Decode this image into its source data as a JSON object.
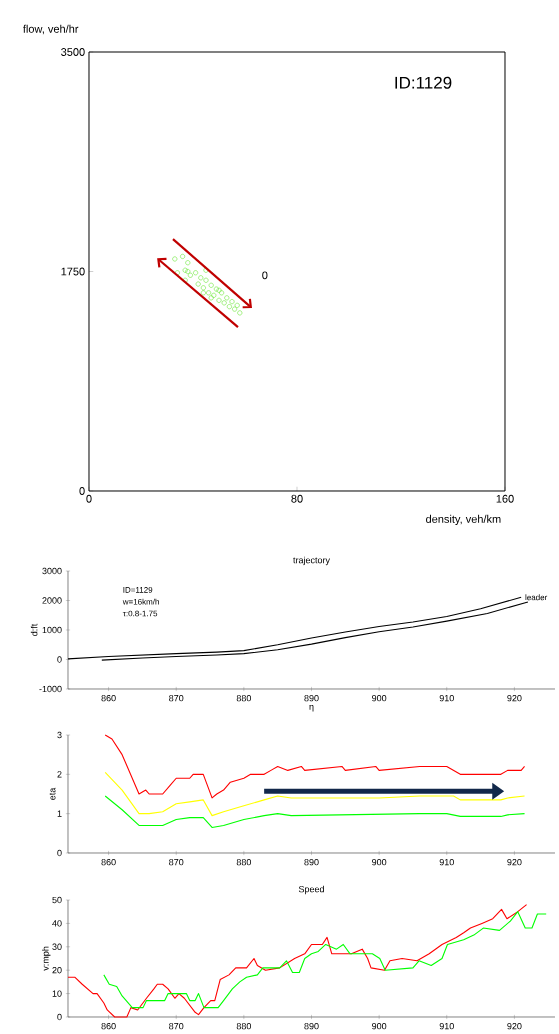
{
  "chart_data": [
    {
      "type": "scatter",
      "xlabel": "density, veh/km",
      "ylabel": "flow, veh/hr",
      "xlim": [
        0,
        160
      ],
      "ylim": [
        0,
        3500
      ],
      "xticks": [
        0,
        80,
        160
      ],
      "yticks": [
        0,
        1750,
        3500
      ],
      "marker": "circle",
      "color": "#66e633",
      "x": [
        33,
        34,
        36,
        37,
        38,
        39,
        45,
        37,
        41,
        42,
        43,
        44,
        45,
        46,
        47,
        48,
        49,
        50,
        51,
        52,
        53,
        54,
        55,
        56,
        57,
        58,
        44,
        50,
        38,
        47
      ],
      "values": [
        1850,
        1740,
        1870,
        1760,
        1820,
        1720,
        1760,
        1680,
        1740,
        1650,
        1700,
        1620,
        1680,
        1580,
        1640,
        1560,
        1610,
        1520,
        1580,
        1500,
        1540,
        1470,
        1510,
        1450,
        1480,
        1420,
        1580,
        1600,
        1750,
        1540
      ],
      "annotations": [
        "ID:1129",
        "0"
      ]
    },
    {
      "type": "line",
      "title": "trajectory",
      "xlabel": "η",
      "ylabel": "d:ft",
      "xlim": [
        854,
        926
      ],
      "ylim": [
        -1000,
        3000
      ],
      "xticks": [
        860,
        870,
        880,
        890,
        900,
        910,
        920
      ],
      "yticks": [
        -1000,
        0,
        1000,
        2000,
        3000
      ],
      "marker": "none",
      "series": [
        {
          "name": "leader",
          "color": "#000000",
          "x": [
            854,
            860,
            870,
            876,
            880,
            885,
            890,
            895,
            900,
            905,
            910,
            915,
            921
          ],
          "values": [
            20,
            100,
            200,
            250,
            300,
            500,
            730,
            930,
            1120,
            1270,
            1460,
            1720,
            2110
          ]
        },
        {
          "color": "#000000",
          "x": [
            859,
            865,
            870,
            876,
            880,
            885,
            890,
            895,
            900,
            905,
            910,
            916,
            922
          ],
          "values": [
            -20,
            50,
            100,
            150,
            200,
            330,
            520,
            740,
            940,
            1100,
            1300,
            1560,
            1950
          ]
        }
      ],
      "annotations": [
        "ID=1129",
        "w=16km/h",
        "τ:0.8-1.75"
      ]
    },
    {
      "type": "line",
      "ylabel": "eta",
      "xlim": [
        854,
        926
      ],
      "ylim": [
        0,
        3
      ],
      "xticks": [
        860,
        870,
        880,
        890,
        900,
        910,
        920
      ],
      "yticks": [
        0,
        1,
        2,
        3
      ],
      "marker": "none",
      "series": [
        {
          "color": "#ff0000",
          "x": [
            859.5,
            860.5,
            862,
            864.5,
            865.5,
            866,
            868,
            869,
            870,
            872,
            872.5,
            874,
            875.3,
            876,
            877,
            878,
            880,
            881,
            883,
            884,
            885,
            886.5,
            888.5,
            889,
            894.5,
            895,
            899.5,
            900,
            906,
            910,
            911,
            912,
            918,
            919,
            921,
            921.5
          ],
          "values": [
            3.0,
            2.9,
            2.5,
            1.5,
            1.6,
            1.5,
            1.5,
            1.7,
            1.9,
            1.9,
            2.0,
            2.0,
            1.4,
            1.5,
            1.6,
            1.8,
            1.9,
            2.0,
            2.0,
            2.1,
            2.2,
            2.1,
            2.2,
            2.1,
            2.2,
            2.1,
            2.2,
            2.1,
            2.2,
            2.2,
            2.1,
            2.0,
            2.0,
            2.1,
            2.1,
            2.2
          ]
        },
        {
          "color": "#ffff00",
          "x": [
            859.5,
            862,
            864.5,
            866,
            868,
            870,
            872,
            874,
            875.3,
            877,
            880,
            883,
            885,
            887,
            900,
            906,
            911,
            912,
            918,
            919,
            921.5
          ],
          "values": [
            2.05,
            1.6,
            1.0,
            1.0,
            1.05,
            1.25,
            1.3,
            1.35,
            0.95,
            1.05,
            1.2,
            1.35,
            1.45,
            1.4,
            1.4,
            1.45,
            1.45,
            1.35,
            1.35,
            1.4,
            1.45
          ]
        },
        {
          "color": "#00ff00",
          "x": [
            859.5,
            862,
            864.5,
            866,
            868,
            870,
            872,
            874,
            875.3,
            877,
            880,
            883,
            885,
            887,
            906,
            910,
            912,
            918,
            919,
            921.5
          ],
          "values": [
            1.45,
            1.1,
            0.7,
            0.7,
            0.7,
            0.85,
            0.9,
            0.9,
            0.65,
            0.7,
            0.85,
            0.95,
            1.0,
            0.95,
            1.0,
            1.0,
            0.93,
            0.93,
            0.97,
            1.0
          ]
        }
      ]
    },
    {
      "type": "line",
      "title": "Speed",
      "ylabel": "v:mph",
      "xlim": [
        854,
        926
      ],
      "ylim": [
        0,
        50
      ],
      "xticks": [
        860,
        870,
        880,
        890,
        900,
        910,
        920
      ],
      "yticks": [
        0,
        10,
        20,
        30,
        40,
        50
      ],
      "marker": "none",
      "series": [
        {
          "color": "#ff0000",
          "x": [
            854,
            855,
            856.1,
            857.7,
            858.3,
            859.3,
            859.8,
            860.9,
            862.7,
            863.3,
            864.3,
            865.6,
            866.7,
            867.2,
            868,
            868.8,
            869.8,
            870.4,
            871.2,
            872.8,
            873.3,
            874.1,
            875.1,
            875.7,
            876.5,
            877.8,
            878.8,
            880.4,
            881.5,
            882,
            883.2,
            885.3,
            887.5,
            889,
            890,
            891.6,
            892.3,
            893,
            895.9,
            897.5,
            898.3,
            898.8,
            900.8,
            901.6,
            903.4,
            905.6,
            907.4,
            909.3,
            911.4,
            912.5,
            913.5,
            915.2,
            916.8,
            918.1,
            918.9,
            920.5,
            921.8
          ],
          "values": [
            17,
            17,
            14,
            10,
            10,
            6,
            3,
            0,
            0,
            4,
            3,
            8,
            12,
            14,
            14,
            12,
            8,
            10,
            8,
            2,
            1,
            4,
            7,
            7,
            16,
            18,
            21,
            21,
            25,
            22,
            20,
            21,
            25,
            27,
            31,
            31,
            34,
            27,
            27,
            29,
            25,
            21,
            20,
            24,
            25,
            24,
            27,
            31,
            34,
            36,
            38,
            40,
            42,
            46,
            42,
            45,
            48
          ]
        },
        {
          "color": "#00ff00",
          "x": [
            859.3,
            860.1,
            861.2,
            862,
            863.5,
            865.1,
            865.6,
            868.3,
            868.8,
            871.5,
            872,
            872.8,
            873.3,
            874.1,
            876.2,
            877,
            878.3,
            879.4,
            880.4,
            882,
            882.8,
            885.3,
            886.3,
            887.2,
            888.2,
            889,
            890,
            891,
            892.1,
            893.7,
            894.7,
            895.7,
            899,
            900.1,
            900.9,
            905,
            905.9,
            907.7,
            909.3,
            910.1,
            912.5,
            914,
            915.4,
            917.8,
            919.4,
            920.5,
            921.6,
            922.6,
            923.4,
            924.7
          ],
          "values": [
            18,
            14,
            13,
            9,
            4,
            4,
            7,
            7,
            10,
            10,
            7,
            7,
            10,
            4,
            4,
            7,
            12,
            15,
            17,
            18,
            21,
            21,
            24,
            19,
            19,
            25,
            27,
            28,
            31,
            29,
            31,
            27,
            27,
            25,
            20,
            21,
            24,
            22,
            25,
            31,
            33,
            35,
            38,
            37,
            41,
            45,
            38,
            38,
            44,
            44
          ]
        }
      ]
    }
  ]
}
